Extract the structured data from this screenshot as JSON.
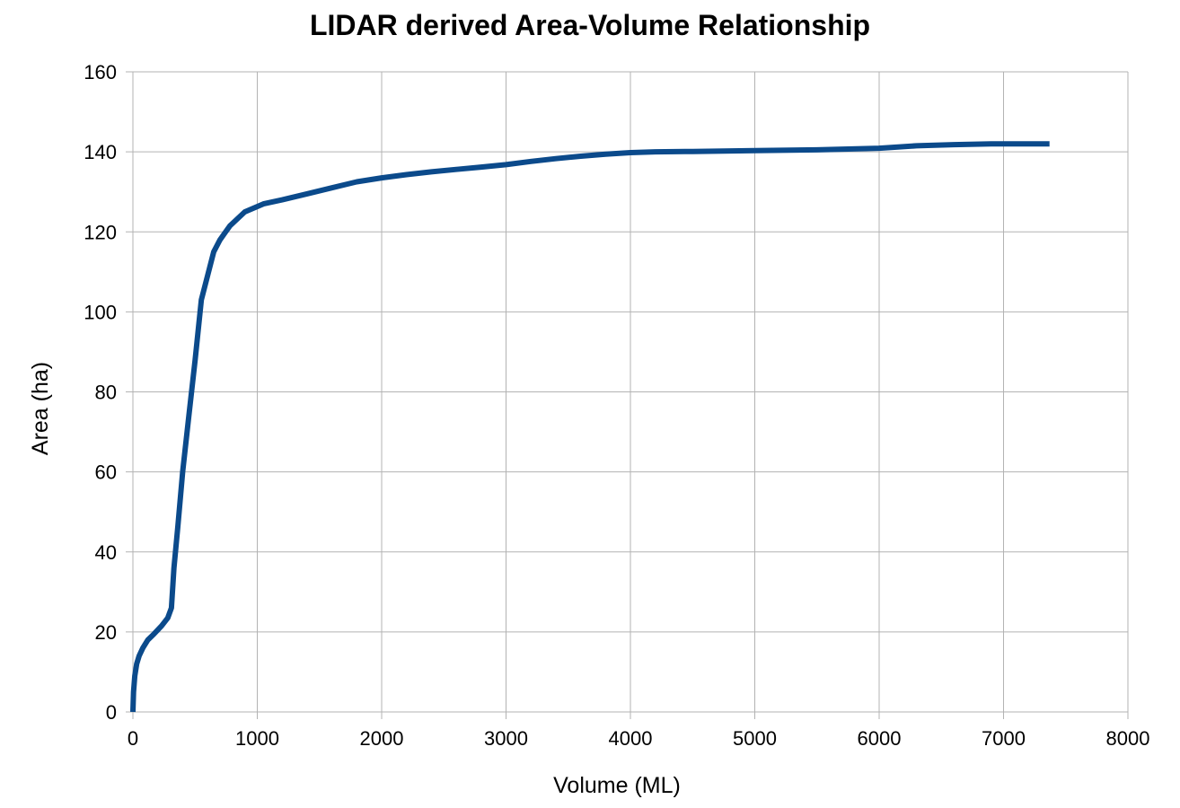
{
  "chart_data": {
    "type": "line",
    "title": "LIDAR derived Area-Volume Relationship",
    "xlabel": "Volume (ML)",
    "ylabel": "Area (ha)",
    "xlim": [
      0,
      8000
    ],
    "ylim": [
      0,
      160
    ],
    "x_ticks": [
      0,
      1000,
      2000,
      3000,
      4000,
      5000,
      6000,
      7000,
      8000
    ],
    "y_ticks": [
      0,
      20,
      40,
      60,
      80,
      100,
      120,
      140,
      160
    ],
    "grid": true,
    "legend": "none",
    "line_color": "#0b4a8b",
    "grid_color": "#b3b3b3",
    "series": [
      {
        "x": [
          0,
          5,
          15,
          30,
          50,
          80,
          120,
          170,
          230,
          280,
          310,
          330,
          360,
          400,
          450,
          500,
          550,
          600,
          650,
          700,
          780,
          900,
          1050,
          1200,
          1400,
          1600,
          1800,
          2000,
          2200,
          2400,
          2600,
          2800,
          3000,
          3200,
          3400,
          3600,
          3800,
          4000,
          4200,
          4500,
          5000,
          5500,
          6000,
          6300,
          6600,
          6900,
          7200,
          7370
        ],
        "y": [
          0,
          5,
          9,
          12,
          14,
          16,
          18,
          19.5,
          21.5,
          23.5,
          26,
          36,
          46,
          60,
          74,
          88,
          103,
          109,
          115,
          118,
          121.5,
          125,
          127,
          128,
          129.5,
          131,
          132.5,
          133.5,
          134.3,
          135,
          135.6,
          136.2,
          136.8,
          137.6,
          138.3,
          138.9,
          139.4,
          139.8,
          140,
          140.1,
          140.3,
          140.5,
          140.9,
          141.5,
          141.8,
          142,
          142,
          142
        ]
      }
    ]
  }
}
